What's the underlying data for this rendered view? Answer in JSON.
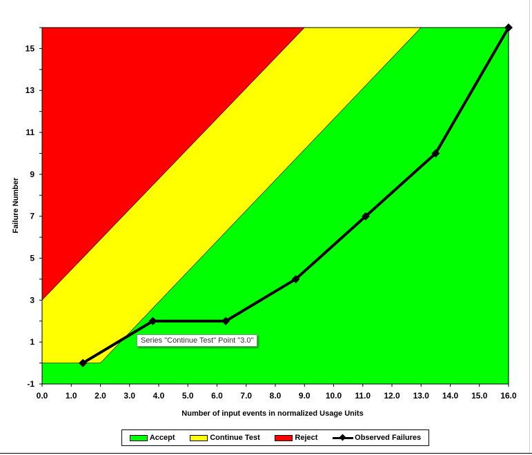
{
  "chart_data": {
    "type": "area",
    "xlabel": "Number of input events in normalized Usage Units",
    "ylabel": "Failure Number",
    "xlim": [
      0,
      16
    ],
    "ylim": [
      -1,
      16
    ],
    "x_ticks": [
      "0.0",
      "1.0",
      "2.0",
      "3.0",
      "4.0",
      "5.0",
      "6.0",
      "7.0",
      "8.0",
      "9.0",
      "10.0",
      "11.0",
      "12.0",
      "13.0",
      "14.0",
      "15.0",
      "16.0"
    ],
    "y_ticks": [
      "-1",
      "1",
      "3",
      "5",
      "7",
      "9",
      "11",
      "13",
      "15"
    ],
    "y_tick_values": [
      -1,
      1,
      3,
      5,
      7,
      9,
      11,
      13,
      15
    ],
    "regions": [
      {
        "name": "Reject",
        "color": "#ff0000",
        "boundary": [
          [
            0,
            3
          ],
          [
            9.0,
            16
          ]
        ]
      },
      {
        "name": "Continue Test",
        "color": "#ffff00",
        "boundary": [
          [
            0,
            0
          ],
          [
            2.0,
            0
          ],
          [
            13.0,
            16
          ]
        ]
      },
      {
        "name": "Accept",
        "color": "#00ff00"
      }
    ],
    "series": [
      {
        "name": "Observed Failures",
        "color": "#000000",
        "x": [
          1.4,
          3.8,
          6.3,
          8.7,
          11.1,
          13.5,
          16.0
        ],
        "y": [
          0,
          2,
          2,
          4,
          7,
          10,
          16
        ]
      }
    ],
    "legend": [
      "Accept",
      "Continue Test",
      "Reject",
      "Observed Failures"
    ],
    "legend_position": "bottom",
    "tooltip": "Series \"Continue Test\" Point \"3.0\""
  }
}
